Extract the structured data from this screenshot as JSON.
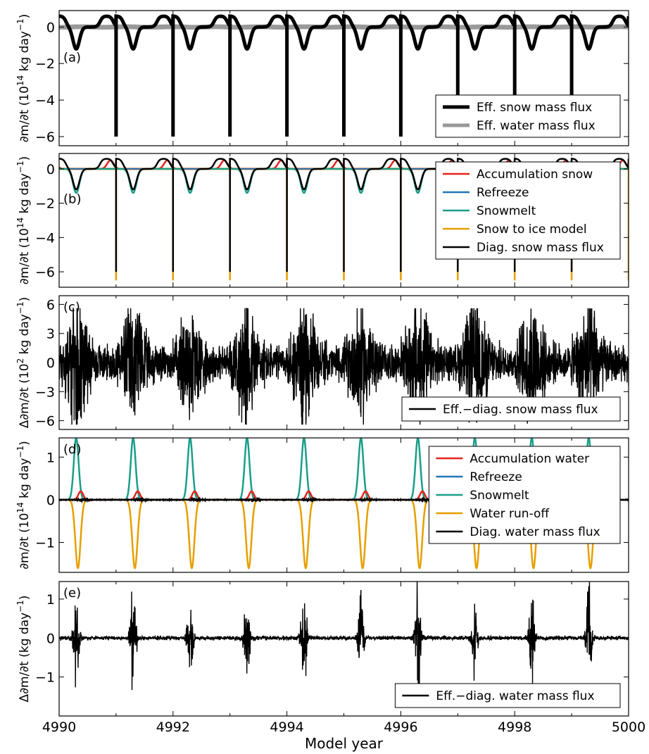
{
  "chart_data": [
    {
      "type": "line",
      "panel_label": "(a)",
      "ylabel_main": "(10",
      "ylabel_sup": "14",
      "ylabel_rest": " kg  day",
      "ylabel_exp": "−1",
      "ylabel_close": ")",
      "ylabel_prefix": "",
      "ylim": [
        -6.5,
        0.9
      ],
      "yticks": [
        0,
        -2,
        -4,
        -6
      ],
      "ytick_labels": [
        "0",
        "−2",
        "−4",
        "−6"
      ],
      "xlim": [
        4990,
        5000
      ],
      "legend_position": "lower-right",
      "series": [
        {
          "name": "Eff. snow mass flux",
          "color": "#000000",
          "style": "thick",
          "events": {
            "spike_years": [
              4991.0,
              4992.0,
              4993.0,
              4994.0,
              4995.0,
              4996.0,
              4997.0,
              4998.0,
              4999.0
            ],
            "spike_value": -6.0,
            "plateau_value": 0.6,
            "melt_min": -1.2,
            "melt_peak_offset": 0.3
          }
        },
        {
          "name": "Eff. water mass flux",
          "color": "#999999",
          "style": "thick",
          "values_approx": 0.0
        }
      ]
    },
    {
      "type": "line",
      "panel_label": "(b)",
      "ylabel_main": "(10",
      "ylabel_sup": "14",
      "ylabel_rest": " kg  day",
      "ylabel_exp": "−1",
      "ylabel_close": ")",
      "ylabel_prefix": "",
      "ylim": [
        -6.9,
        0.9
      ],
      "yticks": [
        0,
        -2,
        -4,
        -6
      ],
      "ytick_labels": [
        "0",
        "−2",
        "−4",
        "−6"
      ],
      "xlim": [
        4990,
        5000
      ],
      "legend_position": "upper-right",
      "series": [
        {
          "name": "Accumulation snow",
          "color": "#e8231c",
          "peak_value": 0.5
        },
        {
          "name": "Refreeze",
          "color": "#1f77b4",
          "value": 0.0
        },
        {
          "name": "Snowmelt",
          "color": "#1a9e89",
          "min_value": -1.4
        },
        {
          "name": "Snow to ice model",
          "color": "#e69f00",
          "spike_value": -6.5
        },
        {
          "name": "Diag. snow mass flux",
          "color": "#000000",
          "spike_value": -6.0
        }
      ]
    },
    {
      "type": "line",
      "panel_label": "(c)",
      "ylabel_main": "(10",
      "ylabel_sup": "2",
      "ylabel_rest": " kg  day",
      "ylabel_exp": "−1",
      "ylabel_close": ")",
      "ylabel_prefix": "Δ",
      "ylim": [
        -6.9,
        6.9
      ],
      "yticks": [
        6,
        3,
        0,
        -3,
        -6
      ],
      "ytick_labels": [
        "6",
        "3",
        "0",
        "−3",
        "−6"
      ],
      "xlim": [
        4990,
        5000
      ],
      "legend_position": "lower-right",
      "series": [
        {
          "name": "Eff.−diag. snow mass flux",
          "color": "#000000",
          "amplitude_max": 5.5,
          "amplitude_min": -6.2
        }
      ]
    },
    {
      "type": "line",
      "panel_label": "(d)",
      "ylabel_main": "(10",
      "ylabel_sup": "14",
      "ylabel_rest": " kg  day",
      "ylabel_exp": "−1",
      "ylabel_close": ")",
      "ylabel_prefix": "",
      "ylim": [
        -1.7,
        1.45
      ],
      "yticks": [
        1,
        0,
        -1
      ],
      "ytick_labels": [
        "1",
        "0",
        "−1"
      ],
      "xlim": [
        4990,
        5000
      ],
      "legend_position": "upper-right",
      "series": [
        {
          "name": "Accumulation water",
          "color": "#e8231c",
          "peak_value": 0.2
        },
        {
          "name": "Refreeze",
          "color": "#1f77b4",
          "value": 0.0
        },
        {
          "name": "Snowmelt",
          "color": "#1a9e89",
          "peak_value": 1.45
        },
        {
          "name": "Water run-off",
          "color": "#e69f00",
          "min_value": -1.6
        },
        {
          "name": "Diag. water mass flux",
          "color": "#000000",
          "value": 0.0
        }
      ]
    },
    {
      "type": "line",
      "panel_label": "(e)",
      "ylabel_main": "(kg  day",
      "ylabel_sup": "",
      "ylabel_rest": "",
      "ylabel_exp": "−1",
      "ylabel_close": ")",
      "ylabel_prefix": "Δ",
      "ylim": [
        -2.0,
        1.45
      ],
      "yticks": [
        1,
        0,
        -1
      ],
      "ytick_labels": [
        "1",
        "0",
        "−1"
      ],
      "xlim": [
        4990,
        5000
      ],
      "xticks": [
        4990,
        4992,
        4994,
        4996,
        4998,
        5000
      ],
      "xtick_labels": [
        "4990",
        "4992",
        "4994",
        "4996",
        "4998",
        "5000"
      ],
      "xlabel": "Model year",
      "legend_position": "lower-right",
      "series": [
        {
          "name": "Eff.−diag. water mass flux",
          "color": "#000000",
          "amplitude_max": 1.3,
          "amplitude_min": -1.8
        }
      ]
    }
  ],
  "deriv_symbol": "∂m/∂t"
}
